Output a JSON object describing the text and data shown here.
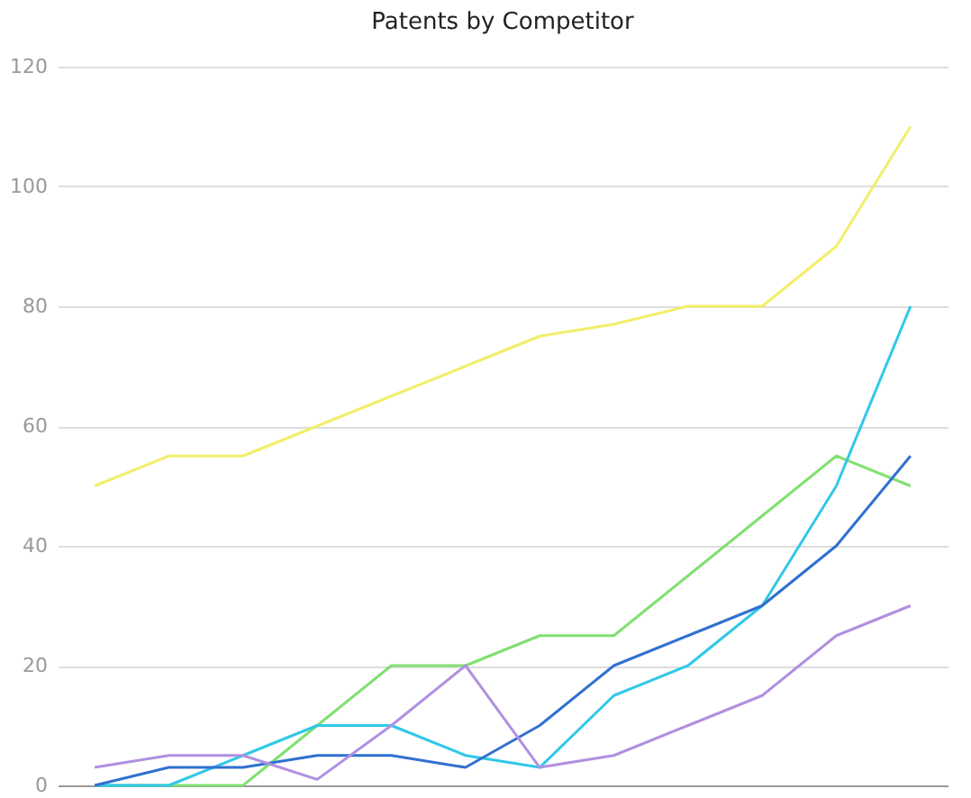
{
  "chart_data": {
    "type": "line",
    "title": "Patents by Competitor",
    "categories": [
      null,
      null,
      null,
      null,
      null,
      null,
      null,
      null,
      null,
      null,
      null,
      null
    ],
    "series": [
      {
        "color": "#f2ee6a",
        "values": [
          50,
          55,
          55,
          60,
          65,
          70,
          75,
          77,
          80,
          80,
          90,
          110
        ]
      },
      {
        "color": "#80e070",
        "values": [
          0,
          0,
          0,
          10,
          20,
          20,
          25,
          25,
          35,
          45,
          55,
          50
        ]
      },
      {
        "color": "#30c8e8",
        "values": [
          0,
          0,
          5,
          10,
          10,
          5,
          3,
          15,
          20,
          30,
          50,
          80
        ]
      },
      {
        "color": "#3070d0",
        "values": [
          0,
          3,
          3,
          5,
          5,
          3,
          10,
          20,
          25,
          30,
          40,
          55
        ]
      },
      {
        "color": "#b090e0",
        "values": [
          3,
          5,
          5,
          1,
          10,
          20,
          3,
          5,
          10,
          15,
          25,
          30
        ]
      }
    ],
    "ylim": [
      0,
      120
    ],
    "yticks": [
      0,
      20,
      40,
      60,
      80,
      100,
      120
    ],
    "grid": "y",
    "tick_labels": "y",
    "marker": "none",
    "line_style": "solid"
  }
}
